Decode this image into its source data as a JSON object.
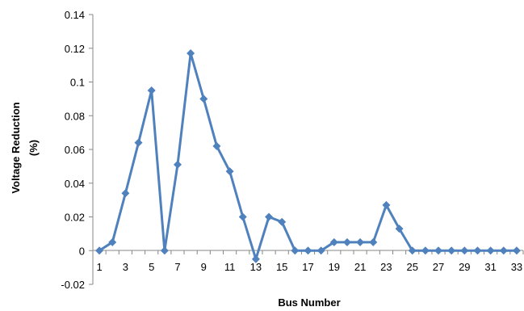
{
  "chart_data": {
    "type": "line",
    "title": "",
    "xlabel": "Bus Number",
    "ylabel_lines": [
      "Voltage Reduction",
      "(%)"
    ],
    "x": [
      1,
      2,
      3,
      4,
      5,
      6,
      7,
      8,
      9,
      10,
      11,
      12,
      13,
      14,
      15,
      16,
      17,
      18,
      19,
      20,
      21,
      22,
      23,
      24,
      25,
      26,
      27,
      28,
      29,
      30,
      31,
      32,
      33
    ],
    "x_tick_labels": [
      "1",
      "3",
      "5",
      "7",
      "9",
      "11",
      "13",
      "15",
      "17",
      "19",
      "21",
      "23",
      "25",
      "27",
      "29",
      "31",
      "33"
    ],
    "y_tick_labels": [
      "-0.02",
      "0",
      "0.02",
      "0.04",
      "0.06",
      "0.08",
      "0.1",
      "0.12",
      "0.14"
    ],
    "ylim": [
      -0.02,
      0.14
    ],
    "series": [
      {
        "color": "#4F81BD",
        "marker": "diamond",
        "values": [
          0,
          0.005,
          0.034,
          0.064,
          0.095,
          0,
          0.051,
          0.117,
          0.09,
          0.062,
          0.047,
          0.02,
          -0.005,
          0.02,
          0.017,
          0,
          0,
          0,
          0.005,
          0.005,
          0.005,
          0.005,
          0.027,
          0.013,
          0,
          0,
          0,
          0,
          0,
          0,
          0,
          0,
          0
        ]
      }
    ],
    "grid": false,
    "legend": "none"
  }
}
